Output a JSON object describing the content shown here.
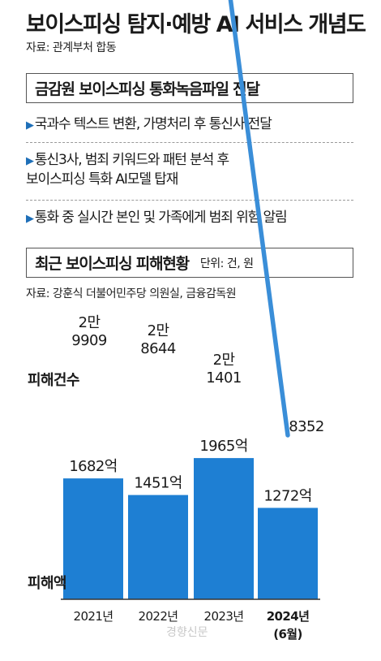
{
  "header": {
    "title": "보이스피싱 탐지·예방 AI 서비스 개념도",
    "source": "자료: 관계부처 합동"
  },
  "process": {
    "heading": "금감원 보이스피싱 통화녹음파일 전달",
    "marker": "▶",
    "steps": [
      {
        "line1": "국과수 텍스트 변환, 가명처리 후 통신사 전달",
        "line2": ""
      },
      {
        "line1": "통신3사, 범죄 키워드와 패턴 분석 후",
        "line2": "보이스피싱 특화 AI모델 탑재"
      },
      {
        "line1": "통화 중 실시간 본인 및 가족에게 범죄 위험 알림",
        "line2": ""
      }
    ]
  },
  "stats": {
    "heading": "최근 보이스피싱 피해현황",
    "unit": "단위: 건, 원",
    "source": "자료: 강훈식 더불어민주당 의원실, 금융감독원"
  },
  "colors": {
    "bar": "#1e7fd3",
    "line": "#3a8ed8",
    "marker": "#1e6fb8"
  },
  "chart_data": {
    "type": "bar",
    "categories": [
      "2021년",
      "2022년",
      "2023년",
      "2024년"
    ],
    "category_sublabels": [
      "",
      "",
      "",
      "(6월)"
    ],
    "highlight_category_index": 3,
    "series": [
      {
        "name": "피해건수",
        "type": "line",
        "values": [
          29909,
          28644,
          21401,
          8352
        ],
        "labels": [
          [
            "2만",
            "9909"
          ],
          [
            "2만",
            "8644"
          ],
          [
            "2만",
            "1401"
          ],
          [
            "8352"
          ]
        ]
      },
      {
        "name": "피해액",
        "type": "bar",
        "unit": "억",
        "values": [
          1682,
          1451,
          1965,
          1272
        ],
        "labels": [
          "1682억",
          "1451억",
          "1965억",
          "1272억"
        ]
      }
    ]
  },
  "watermark": "경향신문"
}
